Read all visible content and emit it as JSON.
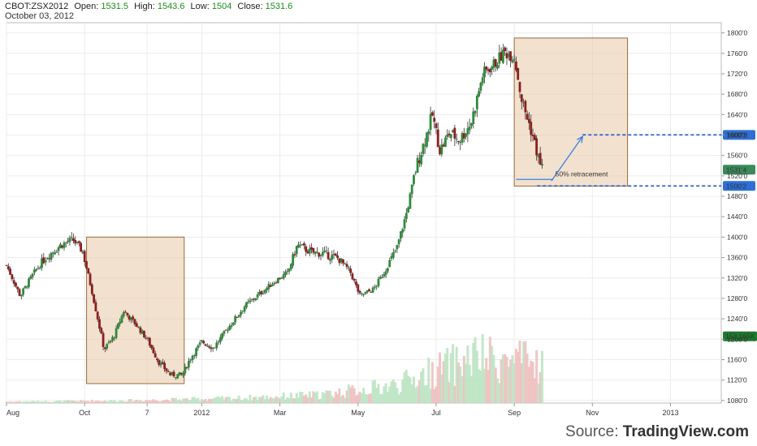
{
  "header": {
    "symbol": "CBOT:ZSX2012",
    "open_label": "Open:",
    "open": "1531.5",
    "high_label": "High:",
    "high": "1543.6",
    "low_label": "Low:",
    "low": "1504",
    "close_label": "Close:",
    "close": "1531.6",
    "date": "October 03, 2012"
  },
  "source": {
    "prefix": "Source:",
    "brand": "TradingView.com"
  },
  "chart_data": {
    "type": "candlestick",
    "y_ticks": [
      "1800'0",
      "1760'0",
      "1720'0",
      "1680'0",
      "1640'0",
      "1600'0",
      "1560'0",
      "1520'0",
      "1480'0",
      "1440'0",
      "1400'0",
      "1360'0",
      "1320'0",
      "1280'0",
      "1240'0",
      "1200'0",
      "1160'0",
      "1120'0",
      "1080'0"
    ],
    "y_tick_values": [
      1800,
      1760,
      1720,
      1680,
      1640,
      1600,
      1560,
      1520,
      1480,
      1440,
      1400,
      1360,
      1320,
      1280,
      1240,
      1200,
      1160,
      1120,
      1080
    ],
    "ylim": [
      1075,
      1820
    ],
    "x_ticks": [
      "Aug",
      "Oct",
      "7",
      "2012",
      "Mar",
      "May",
      "Jul",
      "Sep",
      "Nov",
      "2013"
    ],
    "x_tick_months": [
      0,
      2,
      3.6,
      5,
      7,
      9,
      11,
      13,
      15,
      17
    ],
    "xlim": [
      0,
      18.3
    ],
    "price_path": [
      [
        0,
        1345
      ],
      [
        0.35,
        1285
      ],
      [
        0.7,
        1330
      ],
      [
        1.0,
        1360
      ],
      [
        1.4,
        1385
      ],
      [
        1.7,
        1395
      ],
      [
        1.95,
        1372
      ],
      [
        2.2,
        1290
      ],
      [
        2.5,
        1180
      ],
      [
        2.75,
        1205
      ],
      [
        3.0,
        1255
      ],
      [
        3.3,
        1230
      ],
      [
        3.6,
        1200
      ],
      [
        3.9,
        1155
      ],
      [
        4.2,
        1130
      ],
      [
        4.5,
        1130
      ],
      [
        4.7,
        1162
      ],
      [
        5.0,
        1195
      ],
      [
        5.3,
        1183
      ],
      [
        5.7,
        1225
      ],
      [
        6.1,
        1265
      ],
      [
        6.5,
        1290
      ],
      [
        6.9,
        1315
      ],
      [
        7.2,
        1330
      ],
      [
        7.45,
        1385
      ],
      [
        7.8,
        1370
      ],
      [
        8.1,
        1368
      ],
      [
        8.5,
        1358
      ],
      [
        8.8,
        1332
      ],
      [
        9.05,
        1285
      ],
      [
        9.4,
        1298
      ],
      [
        9.7,
        1335
      ],
      [
        10.0,
        1380
      ],
      [
        10.25,
        1450
      ],
      [
        10.5,
        1540
      ],
      [
        10.75,
        1600
      ],
      [
        10.9,
        1640
      ],
      [
        11.1,
        1570
      ],
      [
        11.35,
        1605
      ],
      [
        11.6,
        1590
      ],
      [
        11.9,
        1625
      ],
      [
        12.2,
        1720
      ],
      [
        12.5,
        1740
      ],
      [
        12.75,
        1762
      ],
      [
        13.0,
        1755
      ],
      [
        13.2,
        1665
      ],
      [
        13.45,
        1605
      ],
      [
        13.65,
        1545
      ],
      [
        13.75,
        1532
      ]
    ],
    "volume_levels": [
      [
        0,
        0.015
      ],
      [
        3,
        0.03
      ],
      [
        6,
        0.06
      ],
      [
        8,
        0.1
      ],
      [
        10,
        0.22
      ],
      [
        11,
        0.4
      ],
      [
        12,
        0.55
      ],
      [
        13,
        0.5
      ],
      [
        13.75,
        0.48
      ]
    ],
    "volume_last": "153.165K",
    "price_last": "1531'4",
    "levels": [
      {
        "label": "1600'2",
        "value": 1600.25
      },
      {
        "label": "1500'2",
        "value": 1500.25
      }
    ],
    "boxes": [
      {
        "x0": 2.05,
        "x1": 4.55,
        "y0": 1113,
        "y1": 1400
      },
      {
        "x0": 13.0,
        "x1": 15.9,
        "y0": 1500,
        "y1": 1790
      }
    ],
    "annotation": "50% retracement",
    "retracement_arrow": {
      "x0": 13.95,
      "y0": 1510,
      "x1": 14.75,
      "y1": 1597
    },
    "retracement_line": {
      "x0": 13.05,
      "x1": 14.0,
      "value": 1513
    }
  }
}
